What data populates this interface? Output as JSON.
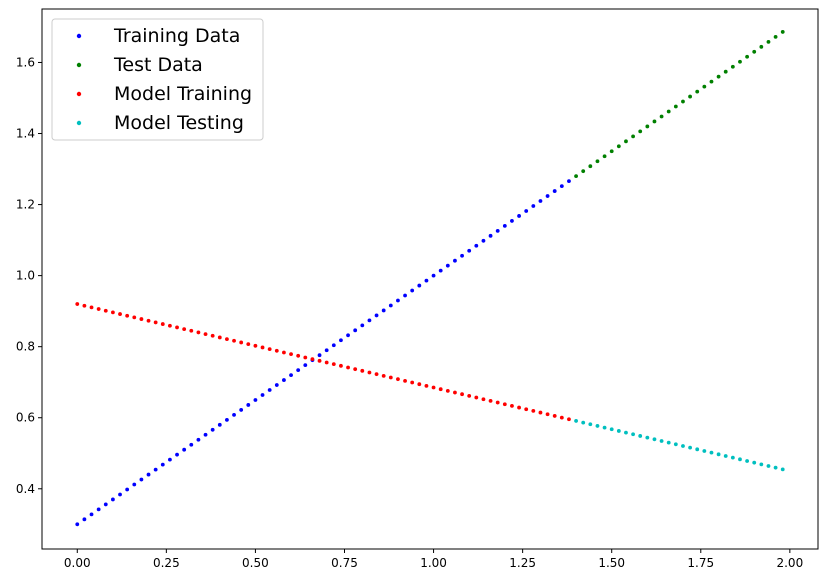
{
  "chart_data": {
    "type": "scatter",
    "title": "",
    "xlabel": "",
    "ylabel": "",
    "xlim": [
      -0.099,
      2.079
    ],
    "ylim": [
      0.2305,
      1.7505
    ],
    "xticks": [
      {
        "value": 0.0,
        "label": "0.00"
      },
      {
        "value": 0.25,
        "label": "0.25"
      },
      {
        "value": 0.5,
        "label": "0.50"
      },
      {
        "value": 0.75,
        "label": "0.75"
      },
      {
        "value": 1.0,
        "label": "1.00"
      },
      {
        "value": 1.25,
        "label": "1.25"
      },
      {
        "value": 1.5,
        "label": "1.50"
      },
      {
        "value": 1.75,
        "label": "1.75"
      },
      {
        "value": 2.0,
        "label": "2.00"
      }
    ],
    "yticks": [
      {
        "value": 0.4,
        "label": "0.4"
      },
      {
        "value": 0.6,
        "label": "0.6"
      },
      {
        "value": 0.8,
        "label": "0.8"
      },
      {
        "value": 1.0,
        "label": "1.0"
      },
      {
        "value": 1.2,
        "label": "1.2"
      },
      {
        "value": 1.4,
        "label": "1.4"
      },
      {
        "value": 1.6,
        "label": "1.6"
      }
    ],
    "grid": false,
    "legend_position": "top-left",
    "series": [
      {
        "name": "Training Data",
        "color": "#0000ff",
        "x_start": 0.0,
        "x_step": 0.02,
        "count": 70,
        "slope": 0.7,
        "intercept": 0.3
      },
      {
        "name": "Test Data",
        "color": "#008000",
        "x_start": 1.4,
        "x_step": 0.02,
        "count": 30,
        "slope": 0.7,
        "intercept": 0.3
      },
      {
        "name": "Model Training",
        "color": "#ff0000",
        "x_start": 0.0,
        "x_step": 0.02,
        "count": 70,
        "slope": -0.235,
        "intercept": 0.92
      },
      {
        "name": "Model Testing",
        "color": "#00bfbf",
        "x_start": 1.4,
        "x_step": 0.02,
        "count": 30,
        "slope": -0.235,
        "intercept": 0.92
      }
    ]
  }
}
